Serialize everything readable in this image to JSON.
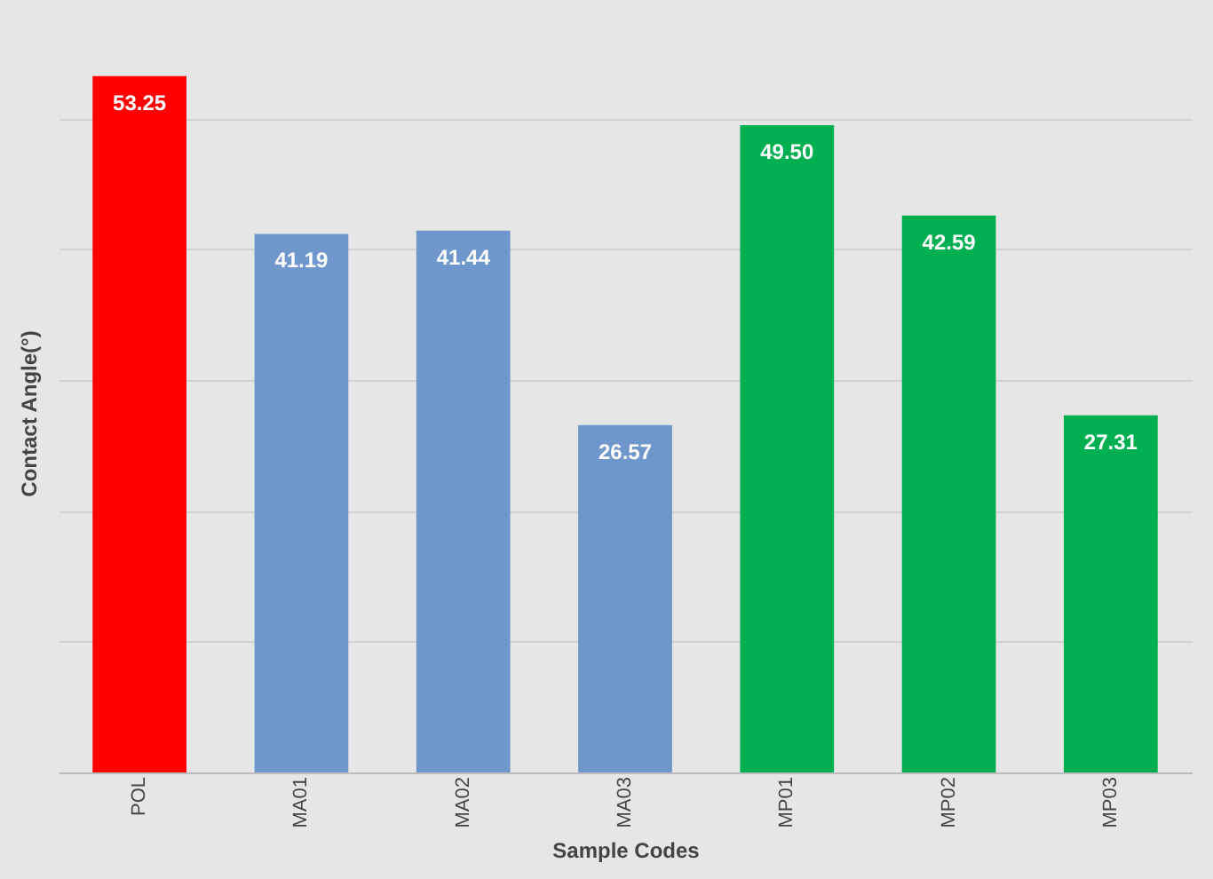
{
  "chart_data": {
    "type": "bar",
    "xlabel": "Sample Codes",
    "ylabel": "Contact Angle(°)",
    "categories": [
      "POL",
      "MA01",
      "MA02",
      "MA03",
      "MP01",
      "MP02",
      "MP03"
    ],
    "values": [
      53.25,
      41.19,
      41.44,
      26.57,
      49.5,
      42.59,
      27.31
    ],
    "colors": [
      "#ff0000",
      "#7097cb",
      "#7097cb",
      "#7097cb",
      "#00b050",
      "#00b050",
      "#00b050"
    ],
    "value_labels": [
      "53.25",
      "41.19",
      "41.44",
      "26.57",
      "49.50",
      "42.59",
      "27.31"
    ],
    "grid": "y",
    "tick_labels": "x"
  }
}
